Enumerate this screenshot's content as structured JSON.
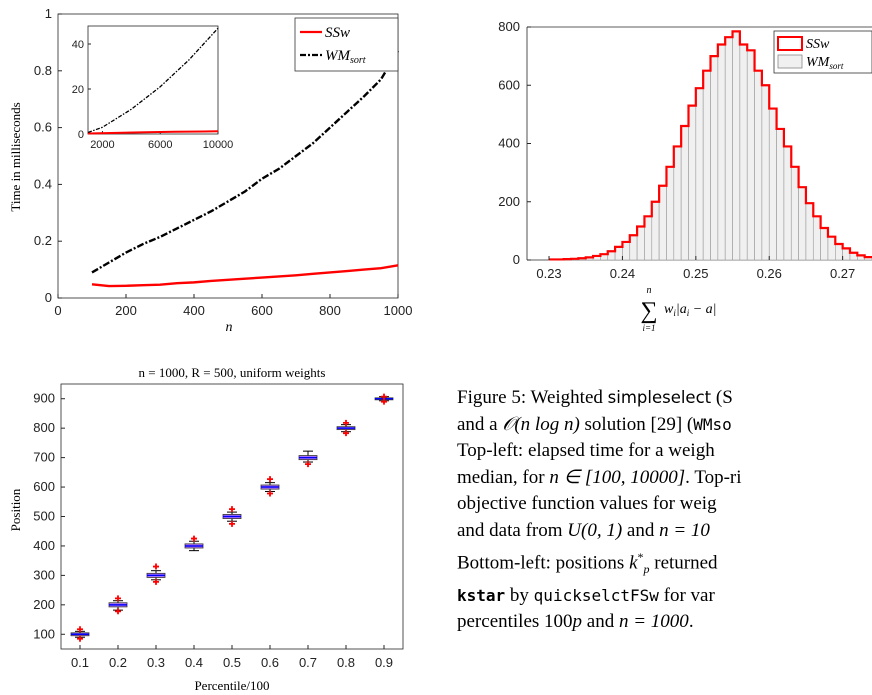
{
  "chart_data": [
    {
      "type": "line",
      "xlabel": "n",
      "ylabel": "Time in milliseconds",
      "xlim": [
        0,
        1000
      ],
      "ylim": [
        0,
        1
      ],
      "xticks": [
        "0",
        "200",
        "400",
        "600",
        "800",
        "1000"
      ],
      "yticks": [
        "0",
        "0.2",
        "0.4",
        "0.6",
        "0.8",
        "1"
      ],
      "legend": {
        "placement": "top-right"
      },
      "series": [
        {
          "name": "SSw",
          "color": "#ff0000",
          "style": "solid",
          "x": [
            100,
            150,
            200,
            250,
            300,
            350,
            400,
            450,
            500,
            550,
            600,
            650,
            700,
            750,
            800,
            850,
            900,
            950,
            1000
          ],
          "y": [
            0.048,
            0.042,
            0.043,
            0.045,
            0.047,
            0.052,
            0.055,
            0.06,
            0.064,
            0.068,
            0.072,
            0.076,
            0.08,
            0.085,
            0.09,
            0.095,
            0.1,
            0.105,
            0.115
          ]
        },
        {
          "name": "WM_sort",
          "color": "#000000",
          "style": "dashdot",
          "x": [
            100,
            150,
            200,
            250,
            300,
            350,
            400,
            450,
            500,
            550,
            600,
            650,
            700,
            750,
            800,
            850,
            900,
            950,
            1000
          ],
          "y": [
            0.09,
            0.125,
            0.16,
            0.19,
            0.215,
            0.245,
            0.275,
            0.305,
            0.34,
            0.375,
            0.42,
            0.455,
            0.5,
            0.545,
            0.6,
            0.655,
            0.71,
            0.77,
            0.87
          ]
        }
      ],
      "inset": {
        "xlim": [
          1000,
          10000
        ],
        "ylim": [
          0,
          48
        ],
        "xticks": [
          "2000",
          "6000",
          "10000"
        ],
        "yticks": [
          "0",
          "20",
          "40"
        ],
        "series": [
          {
            "name": "SSw",
            "color": "#ff0000",
            "x": [
              1000,
              3000,
              5000,
              7000,
              9000,
              10000
            ],
            "y": [
              0.2,
              0.5,
              0.8,
              1.0,
              1.1,
              1.2
            ]
          },
          {
            "name": "WM_sort",
            "color": "#000000",
            "x": [
              1000,
              2000,
              3000,
              4000,
              5000,
              6000,
              7000,
              8000,
              9000,
              10000
            ],
            "y": [
              0.7,
              3,
              7,
              11,
              16,
              21,
              27,
              33,
              40,
              47
            ]
          }
        ]
      }
    },
    {
      "type": "bar",
      "xlabel": "Σ w_i |a_i − a|",
      "xlim": [
        0.227,
        0.274
      ],
      "ylim": [
        0,
        800
      ],
      "xticks": [
        "0.23",
        "0.24",
        "0.25",
        "0.26",
        "0.27"
      ],
      "yticks": [
        "0",
        "200",
        "400",
        "600",
        "800"
      ],
      "legend": {
        "placement": "top-right"
      },
      "bin_width": 0.001,
      "bins_start": 0.23,
      "values": [
        2,
        2,
        3,
        4,
        6,
        9,
        14,
        20,
        30,
        45,
        62,
        85,
        115,
        150,
        200,
        255,
        320,
        390,
        460,
        530,
        590,
        650,
        700,
        740,
        765,
        785,
        740,
        720,
        650,
        600,
        520,
        450,
        390,
        320,
        250,
        195,
        150,
        110,
        80,
        55,
        40,
        25,
        16,
        10,
        6,
        4,
        3,
        2,
        1,
        1
      ],
      "series": [
        {
          "name": "SSw",
          "color": "#ff0000"
        },
        {
          "name": "WM_sort",
          "color": "#f0f0f0"
        }
      ]
    },
    {
      "type": "box",
      "title": "n = 1000, R = 500, uniform weights",
      "xlabel": "Percentile/100",
      "ylabel": "Position",
      "ylim": [
        50,
        950
      ],
      "categories": [
        "0.1",
        "0.2",
        "0.3",
        "0.4",
        "0.5",
        "0.6",
        "0.7",
        "0.8",
        "0.9"
      ],
      "yticks": [
        "100",
        "200",
        "300",
        "400",
        "500",
        "600",
        "700",
        "800",
        "900"
      ],
      "boxes": [
        {
          "median": 100,
          "q1": 95,
          "q3": 105,
          "whisker_low": 90,
          "whisker_high": 110,
          "outliers": [
            85,
            117
          ]
        },
        {
          "median": 200,
          "q1": 193,
          "q3": 207,
          "whisker_low": 182,
          "whisker_high": 214,
          "outliers": [
            178,
            222
          ]
        },
        {
          "median": 300,
          "q1": 293,
          "q3": 307,
          "whisker_low": 285,
          "whisker_high": 316,
          "outliers": [
            278,
            330
          ]
        },
        {
          "median": 400,
          "q1": 393,
          "q3": 407,
          "whisker_low": 384,
          "whisker_high": 416,
          "outliers": [
            425
          ]
        },
        {
          "median": 500,
          "q1": 493,
          "q3": 507,
          "whisker_low": 484,
          "whisker_high": 515,
          "outliers": [
            475,
            525
          ]
        },
        {
          "median": 600,
          "q1": 593,
          "q3": 607,
          "whisker_low": 585,
          "whisker_high": 615,
          "outliers": [
            578,
            627
          ]
        },
        {
          "median": 700,
          "q1": 693,
          "q3": 707,
          "whisker_low": 685,
          "whisker_high": 722,
          "outliers": [
            678
          ]
        },
        {
          "median": 800,
          "q1": 795,
          "q3": 805,
          "whisker_low": 788,
          "whisker_high": 812,
          "outliers": [
            783,
            818
          ]
        },
        {
          "median": 900,
          "q1": 897,
          "q3": 903,
          "whisker_low": 893,
          "whisker_high": 907,
          "outliers": [
            890,
            907
          ]
        }
      ],
      "colors": {
        "box": "#c080ff",
        "median": "#0000ff",
        "outlier": "#ff0000",
        "whisker": "#000000"
      }
    }
  ],
  "legend": {
    "ssw_label": "SSw",
    "wm_label": "WM",
    "wm_subscript": "sort"
  },
  "axes_text": {
    "tl_ylabel": "Time in milliseconds",
    "tl_xlabel": "n",
    "tr_xlabel_sum": "∑",
    "tr_xlabel_top": "n",
    "tr_xlabel_bottom": "i=1",
    "tr_xlabel_expr": "w",
    "tr_xlabel_sub": "i",
    "tr_xlabel_rest": "|a",
    "tr_xlabel_rest_sub": "i",
    "tr_xlabel_end": " − a|",
    "bl_title": "n = 1000, R = 500, uniform weights",
    "bl_ylabel": "Position",
    "bl_xlabel": "Percentile/100"
  },
  "caption": {
    "line1_a": "Figure 5:   Weighted ",
    "line1_b": "simpleselect",
    "line1_c": " (S",
    "line2_a": "and a ",
    "line2_b": "𝒪(n log n)",
    "line2_c": " solution [29] (",
    "line2_d": "WMso",
    "line3": "Top-left:  elapsed time for a weigh",
    "line4_a": "median, for ",
    "line4_b": "n ∈ [100, 10000]",
    "line4_c": ".  Top-ri",
    "line5": "objective  function  values  for  weig",
    "line6_a": "and  data  from  ",
    "line6_b": "U(0, 1)",
    "line6_c": "  and  ",
    "line6_d": "n  =  10",
    "line7_a": "Bottom-left:  positions  ",
    "line7_b": "k",
    "line7_c": "  returned",
    "line8_a": "kstar",
    "line8_b": " by ",
    "line8_c": "quickselctFSw",
    "line8_d": " for var",
    "line9_a": "percentiles 100",
    "line9_b": "p",
    "line9_c": " and ",
    "line9_d": "n = 1000",
    "line9_e": "."
  }
}
